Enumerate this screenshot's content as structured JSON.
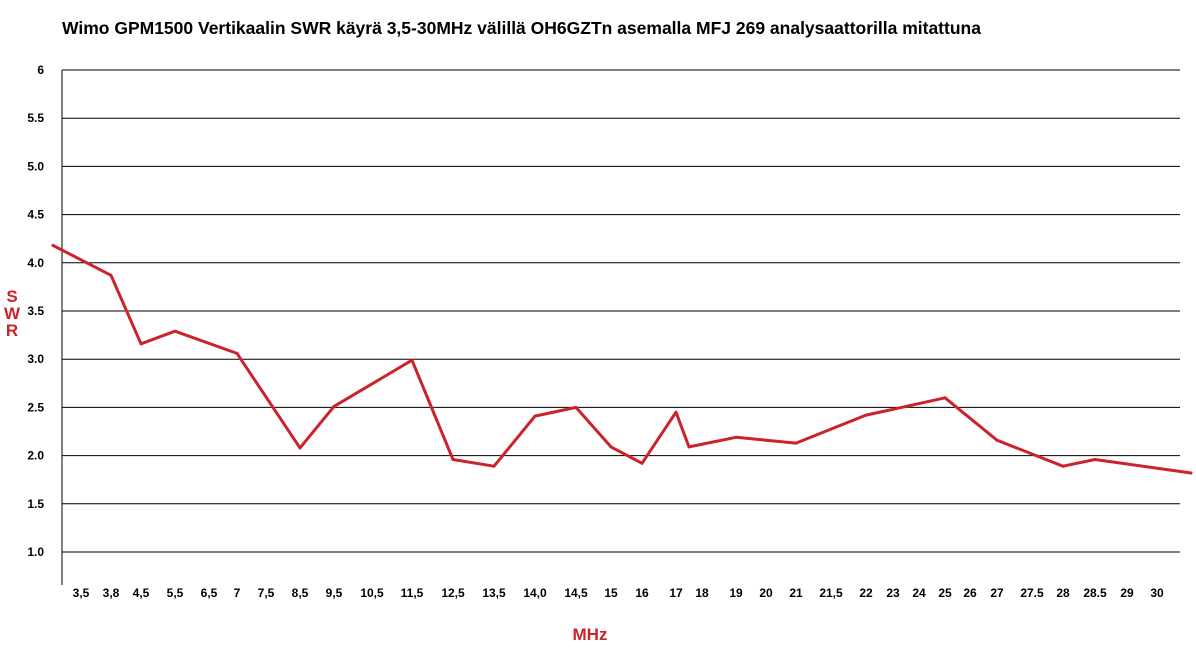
{
  "chart_data": {
    "type": "line",
    "title": "Wimo GPM1500 Vertikaalin SWR käyrä 3,5-30MHz välillä OH6GZTn asemalla MFJ 269 analysaattorilla mitattuna",
    "xlabel": "MHz",
    "ylabel_letters": [
      "S",
      "W",
      "R"
    ],
    "ylim": [
      1.0,
      6.0
    ],
    "y_tick_labels": [
      "1.0",
      "1.5",
      "2.0",
      "2.5",
      "3.0",
      "3.5",
      "4.0",
      "4.5",
      "5.0",
      "5.5",
      "6"
    ],
    "categories": [
      "3,5",
      "3,8",
      "4,5",
      "5,5",
      "6,5",
      "7",
      "7,5",
      "8,5",
      "9,5",
      "10,5",
      "11,5",
      "12,5",
      "13,5",
      "14,0",
      "14,5",
      "15",
      "16",
      "17",
      "18",
      "19",
      "20",
      "21",
      "21,5",
      "22",
      "23",
      "24",
      "25",
      "26",
      "27",
      "27.5",
      "28",
      "28.5",
      "29",
      "30"
    ],
    "series": [
      {
        "x": [
          3.5,
          3.8,
          4.5,
          5.5,
          7,
          8.5,
          9.5,
          11.5,
          12.5,
          13.5,
          14.0,
          14.5,
          15,
          16,
          17,
          17.5,
          19,
          20,
          21,
          22,
          23,
          25,
          27,
          28,
          28.5,
          30
        ],
        "y": [
          4.18,
          3.87,
          3.16,
          3.29,
          3.06,
          2.08,
          2.51,
          2.99,
          1.96,
          1.89,
          2.41,
          2.5,
          2.09,
          1.92,
          2.45,
          2.09,
          2.19,
          2.16,
          2.13,
          2.42,
          2.48,
          2.6,
          2.16,
          1.89,
          1.96,
          1.82
        ]
      }
    ],
    "grid": true,
    "line_color": "#cc2229",
    "label_color": "#cc2229"
  }
}
